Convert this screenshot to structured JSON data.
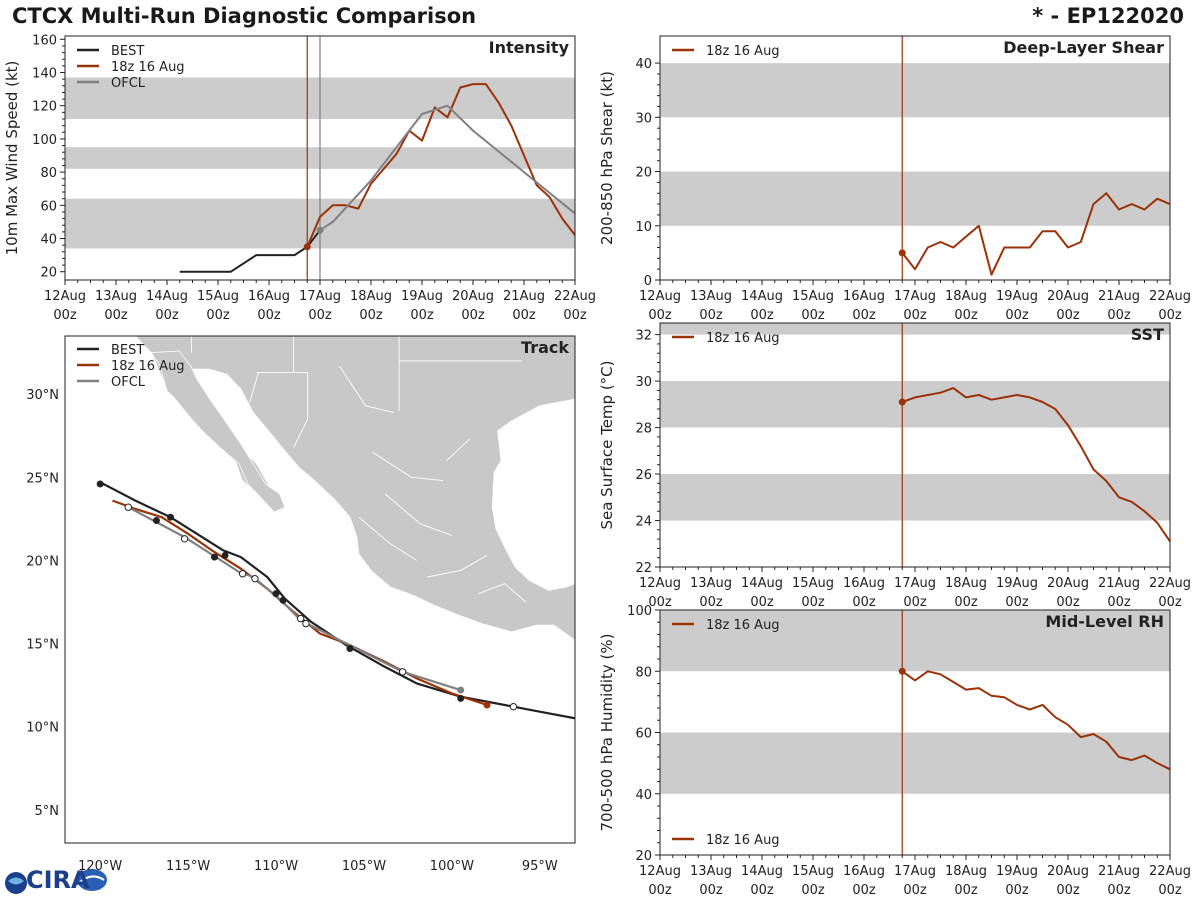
{
  "header": {
    "title": "CTCX Multi-Run Diagnostic Comparison",
    "storm": "* - EP122020"
  },
  "logo": {
    "text": "CIRA"
  },
  "colors": {
    "best": "#222222",
    "run": "#9b3208",
    "ofcl": "#808080",
    "band": "#cccccc",
    "land": "#c8c8c8"
  },
  "time_ticks": {
    "labels": [
      "12Aug",
      "13Aug",
      "14Aug",
      "15Aug",
      "16Aug",
      "17Aug",
      "18Aug",
      "19Aug",
      "20Aug",
      "21Aug",
      "22Aug"
    ],
    "sublabel": "00z"
  },
  "chart_data": [
    {
      "id": "intensity",
      "type": "line",
      "title": "Intensity",
      "ylabel": "10m Max Wind Speed (kt)",
      "xlim": [
        0,
        10
      ],
      "ylim": [
        15,
        162
      ],
      "yticks": [
        20,
        40,
        60,
        80,
        100,
        120,
        140,
        160
      ],
      "bands": [
        [
          34,
          64
        ],
        [
          82,
          95
        ],
        [
          112,
          137
        ]
      ],
      "vlines": [
        {
          "x": 4.75,
          "color": "run"
        },
        {
          "x": 5.0,
          "color": "ofcl"
        }
      ],
      "legend": [
        "BEST",
        "18z 16 Aug",
        "OFCL"
      ],
      "series": [
        {
          "name": "BEST",
          "color": "best",
          "x": [
            2.25,
            2.5,
            2.75,
            3,
            3.25,
            3.5,
            3.75,
            4,
            4.25,
            4.5,
            4.75,
            5
          ],
          "y": [
            20,
            20,
            20,
            20,
            20,
            25,
            30,
            30,
            30,
            30,
            35,
            45
          ]
        },
        {
          "name": "18z 16 Aug",
          "color": "run",
          "x": [
            4.75,
            5,
            5.25,
            5.5,
            5.75,
            6,
            6.25,
            6.5,
            6.75,
            7,
            7.25,
            7.5,
            7.75,
            8,
            8.25,
            8.5,
            8.75,
            9,
            9.25,
            9.5,
            9.75,
            10
          ],
          "y": [
            35,
            53,
            60,
            60,
            58,
            73,
            82,
            91,
            105,
            99,
            119,
            113,
            131,
            133,
            133,
            122,
            108,
            90,
            72,
            65,
            52,
            42
          ],
          "markers": [
            {
              "x": 4.75,
              "y": 35,
              "style": "filled"
            }
          ]
        },
        {
          "name": "OFCL",
          "color": "ofcl",
          "x": [
            5,
            5.25,
            6,
            7,
            7.5,
            8,
            9,
            10
          ],
          "y": [
            45,
            50,
            75,
            115,
            120,
            105,
            80,
            55
          ],
          "markers": [
            {
              "x": 5,
              "y": 45,
              "style": "filled"
            }
          ]
        }
      ]
    },
    {
      "id": "shear",
      "type": "line",
      "title": "Deep-Layer Shear",
      "ylabel": "200-850 hPa Shear (kt)",
      "xlim": [
        0,
        10
      ],
      "ylim": [
        0,
        45
      ],
      "yticks": [
        0,
        10,
        20,
        30,
        40
      ],
      "bands": [
        [
          10,
          20
        ],
        [
          30,
          40
        ]
      ],
      "vlines": [
        {
          "x": 4.75,
          "color": "run"
        }
      ],
      "legend": [
        "18z 16 Aug"
      ],
      "series": [
        {
          "name": "18z 16 Aug",
          "color": "run",
          "x": [
            4.75,
            5,
            5.25,
            5.5,
            5.75,
            6,
            6.25,
            6.5,
            6.75,
            7,
            7.25,
            7.5,
            7.75,
            8,
            8.25,
            8.5,
            8.75,
            9,
            9.25,
            9.5,
            9.75,
            10
          ],
          "y": [
            5,
            2,
            6,
            7,
            6,
            8,
            10,
            1,
            6,
            6,
            6,
            9,
            9,
            6,
            7,
            14,
            16,
            13,
            14,
            13,
            15,
            14
          ],
          "markers": [
            {
              "x": 4.75,
              "y": 5,
              "style": "filled"
            }
          ]
        }
      ]
    },
    {
      "id": "sst",
      "type": "line",
      "title": "SST",
      "ylabel": "Sea Surface Temp (°C)",
      "xlim": [
        0,
        10
      ],
      "ylim": [
        22,
        32.5
      ],
      "yticks": [
        22,
        24,
        26,
        28,
        30,
        32
      ],
      "bands": [
        [
          24,
          26
        ],
        [
          28,
          30
        ],
        [
          32,
          33
        ]
      ],
      "vlines": [
        {
          "x": 4.75,
          "color": "run"
        }
      ],
      "legend": [
        "18z 16 Aug"
      ],
      "series": [
        {
          "name": "18z 16 Aug",
          "color": "run",
          "x": [
            4.75,
            5,
            5.25,
            5.5,
            5.75,
            6,
            6.25,
            6.5,
            6.75,
            7,
            7.25,
            7.5,
            7.75,
            8,
            8.25,
            8.5,
            8.75,
            9,
            9.25,
            9.5,
            9.75,
            10
          ],
          "y": [
            29.1,
            29.3,
            29.4,
            29.5,
            29.7,
            29.3,
            29.4,
            29.2,
            29.3,
            29.4,
            29.3,
            29.1,
            28.8,
            28.1,
            27.2,
            26.2,
            25.7,
            25.0,
            24.8,
            24.4,
            23.9,
            23.1
          ],
          "markers": [
            {
              "x": 4.75,
              "y": 29.1,
              "style": "filled"
            }
          ]
        }
      ]
    },
    {
      "id": "rh",
      "type": "line",
      "title": "Mid-Level RH",
      "ylabel": "700-500 hPa Humidity (%)",
      "xlim": [
        0,
        10
      ],
      "ylim": [
        20,
        100
      ],
      "yticks": [
        20,
        40,
        60,
        80,
        100
      ],
      "bands": [
        [
          40,
          60
        ],
        [
          80,
          100
        ]
      ],
      "vlines": [
        {
          "x": 4.75,
          "color": "run"
        }
      ],
      "legend": [
        "18z 16 Aug"
      ],
      "series": [
        {
          "name": "18z 16 Aug",
          "color": "run",
          "x": [
            4.75,
            5,
            5.25,
            5.5,
            5.75,
            6,
            6.25,
            6.5,
            6.75,
            7,
            7.25,
            7.5,
            7.75,
            8,
            8.25,
            8.5,
            8.75,
            9,
            9.25,
            9.5,
            9.75,
            10
          ],
          "y": [
            80,
            77,
            80,
            79,
            76.5,
            74,
            74.5,
            72,
            71.5,
            69,
            67.5,
            69,
            65,
            62.5,
            58.5,
            59.5,
            57,
            52,
            51,
            52.5,
            50,
            48
          ],
          "markers": [
            {
              "x": 4.75,
              "y": 80,
              "style": "filled"
            }
          ]
        }
      ]
    },
    {
      "id": "track",
      "type": "scatter",
      "title": "Track",
      "xlim": [
        -122,
        -93
      ],
      "ylim": [
        3,
        33.5
      ],
      "xticks": [
        {
          "v": -120,
          "label": "120°W"
        },
        {
          "v": -115,
          "label": "115°W"
        },
        {
          "v": -110,
          "label": "110°W"
        },
        {
          "v": -105,
          "label": "105°W"
        },
        {
          "v": -100,
          "label": "100°W"
        },
        {
          "v": -95,
          "label": "95°W"
        }
      ],
      "yticks": [
        {
          "v": 5,
          "label": "5°N"
        },
        {
          "v": 10,
          "label": "10°N"
        },
        {
          "v": 15,
          "label": "15°N"
        },
        {
          "v": 20,
          "label": "20°N"
        },
        {
          "v": 25,
          "label": "25°N"
        },
        {
          "v": 30,
          "label": "30°N"
        }
      ],
      "legend": [
        "BEST",
        "18z 16 Aug",
        "OFCL"
      ],
      "series": [
        {
          "name": "BEST",
          "color": "best",
          "lon": [
            -93,
            -95,
            -97,
            -99.5,
            -102,
            -104,
            -106,
            -108,
            -109.5,
            -110.5,
            -112,
            -113,
            -114.5,
            -116,
            -118,
            -120
          ],
          "lat": [
            10.5,
            10.9,
            11.3,
            11.8,
            12.6,
            13.7,
            14.9,
            16.3,
            17.7,
            19.0,
            20.2,
            20.6,
            21.6,
            22.6,
            23.6,
            24.7
          ],
          "filled": [
            [
              -99.5,
              11.7
            ],
            [
              -105.8,
              14.7
            ],
            [
              -109.6,
              17.6
            ],
            [
              -110.0,
              18.0
            ],
            [
              -113.5,
              20.2
            ],
            [
              -112.9,
              20.3
            ],
            [
              -116.8,
              22.4
            ],
            [
              -116.0,
              22.6
            ],
            [
              -120.0,
              24.6
            ]
          ],
          "open": [
            [
              -96.5,
              11.2
            ]
          ]
        },
        {
          "name": "18z 16 Aug",
          "color": "run",
          "lon": [
            -98,
            -100,
            -102,
            -104,
            -106,
            -107.5,
            -109,
            -110.5,
            -112,
            -113.5,
            -115,
            -116.5,
            -118,
            -119.3
          ],
          "lat": [
            11.3,
            12.0,
            12.9,
            14.0,
            15.0,
            15.6,
            16.9,
            18.3,
            19.5,
            20.5,
            21.6,
            22.6,
            23.1,
            23.6
          ],
          "filled": [
            [
              -98.0,
              11.3
            ]
          ],
          "open": []
        },
        {
          "name": "OFCL",
          "color": "ofcl",
          "lon": [
            -99.5,
            -102.8,
            -106,
            -108.6,
            -109.7,
            -111.3,
            -112.1,
            -115.2,
            -118.4
          ],
          "lat": [
            12.2,
            13.3,
            15.0,
            16.4,
            17.6,
            19.0,
            19.3,
            21.4,
            23.2
          ],
          "filled": [
            [
              -99.5,
              12.2
            ]
          ],
          "open": [
            [
              -102.8,
              13.3
            ],
            [
              -108.6,
              16.5
            ],
            [
              -108.3,
              16.2
            ],
            [
              -111.2,
              18.9
            ],
            [
              -111.9,
              19.2
            ],
            [
              -115.2,
              21.3
            ],
            [
              -118.4,
              23.2
            ]
          ]
        }
      ]
    }
  ]
}
